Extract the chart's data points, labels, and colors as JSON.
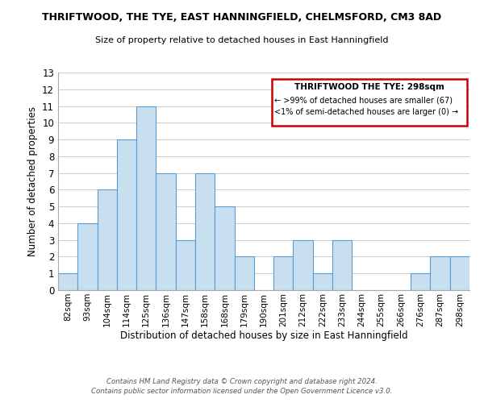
{
  "title": "THRIFTWOOD, THE TYE, EAST HANNINGFIELD, CHELMSFORD, CM3 8AD",
  "subtitle": "Size of property relative to detached houses in East Hanningfield",
  "xlabel": "Distribution of detached houses by size in East Hanningfield",
  "ylabel": "Number of detached properties",
  "bin_labels": [
    "82sqm",
    "93sqm",
    "104sqm",
    "114sqm",
    "125sqm",
    "136sqm",
    "147sqm",
    "158sqm",
    "168sqm",
    "179sqm",
    "190sqm",
    "201sqm",
    "212sqm",
    "222sqm",
    "233sqm",
    "244sqm",
    "255sqm",
    "266sqm",
    "276sqm",
    "287sqm",
    "298sqm"
  ],
  "bar_heights": [
    1,
    4,
    6,
    9,
    11,
    7,
    3,
    7,
    5,
    2,
    0,
    2,
    3,
    1,
    3,
    0,
    0,
    0,
    1,
    2,
    2
  ],
  "bar_color": "#c8dff0",
  "bar_edge_color": "#5b9bd5",
  "ylim": [
    0,
    13
  ],
  "yticks": [
    0,
    1,
    2,
    3,
    4,
    5,
    6,
    7,
    8,
    9,
    10,
    11,
    12,
    13
  ],
  "legend_title": "THRIFTWOOD THE TYE: 298sqm",
  "legend_line1": "← >99% of detached houses are smaller (67)",
  "legend_line2": "<1% of semi-detached houses are larger (0) →",
  "legend_box_color": "#ffffff",
  "legend_border_color": "#cc0000",
  "footer_line1": "Contains HM Land Registry data © Crown copyright and database right 2024.",
  "footer_line2": "Contains public sector information licensed under the Open Government Licence v3.0.",
  "background_color": "#ffffff",
  "grid_color": "#cccccc"
}
